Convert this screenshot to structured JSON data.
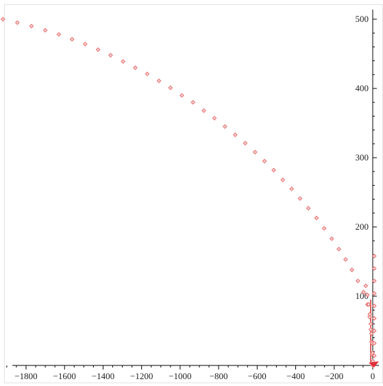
{
  "chart_data": {
    "type": "scatter",
    "title": "",
    "xlabel": "",
    "ylabel": "",
    "xlim": [
      -1940,
      10
    ],
    "ylim": [
      0,
      510
    ],
    "grid": false,
    "x_ticks": [
      -1800,
      -1600,
      -1400,
      -1200,
      -1000,
      -800,
      -600,
      -400,
      -200,
      0
    ],
    "x_tick_labels": [
      "-1800",
      "-1600",
      "-1400",
      "-1200",
      "-1000",
      "-800",
      "-600",
      "-400",
      "-200",
      "0"
    ],
    "y_ticks": [
      100,
      200,
      300,
      400,
      500
    ],
    "y_tick_labels": [
      "100",
      "200",
      "300",
      "400",
      "500"
    ],
    "colors": {
      "marker": "#e87878",
      "axis": "#000000",
      "vertical_line": "#c00000"
    },
    "series": [
      {
        "marker": "diamond",
        "points": [
          [
            -1920,
            500
          ],
          [
            -1845,
            495
          ],
          [
            -1772,
            490
          ],
          [
            -1700,
            484
          ],
          [
            -1630,
            478
          ],
          [
            -1561,
            471
          ],
          [
            -1493,
            464
          ],
          [
            -1426,
            456
          ],
          [
            -1361,
            448
          ],
          [
            -1296,
            439
          ],
          [
            -1233,
            430
          ],
          [
            -1171,
            421
          ],
          [
            -1110,
            411
          ],
          [
            -1050,
            401
          ],
          [
            -991,
            390
          ],
          [
            -933,
            380
          ],
          [
            -877,
            368
          ],
          [
            -822,
            357
          ],
          [
            -767,
            345
          ],
          [
            -714,
            333
          ],
          [
            -662,
            321
          ],
          [
            -611,
            308
          ],
          [
            -562,
            295
          ],
          [
            -514,
            282
          ],
          [
            -467,
            268
          ],
          [
            -421,
            255
          ],
          [
            -377,
            241
          ],
          [
            -334,
            227
          ],
          [
            -292,
            213
          ],
          [
            -252,
            198
          ],
          [
            -213,
            183
          ],
          [
            -176,
            168
          ],
          [
            -141,
            153
          ],
          [
            -108,
            138
          ],
          [
            -77,
            122
          ],
          [
            -48,
            106
          ],
          [
            -27,
            88
          ],
          [
            -16,
            70
          ],
          [
            -10,
            52
          ],
          [
            -6,
            34
          ],
          [
            -4,
            16
          ],
          [
            -2,
            4
          ],
          [
            0,
            0
          ],
          [
            -36,
            115
          ],
          [
            -28,
            102
          ],
          [
            -21,
            88
          ],
          [
            -15,
            74
          ],
          [
            -10,
            60
          ],
          [
            -6,
            46
          ],
          [
            -3,
            32
          ],
          [
            -1,
            18
          ],
          [
            0,
            6
          ],
          [
            8,
            158
          ],
          [
            8,
            140
          ],
          [
            8,
            122
          ],
          [
            8,
            104
          ],
          [
            8,
            86
          ],
          [
            8,
            68
          ],
          [
            8,
            50
          ],
          [
            8,
            32
          ],
          [
            8,
            14
          ]
        ]
      }
    ]
  }
}
